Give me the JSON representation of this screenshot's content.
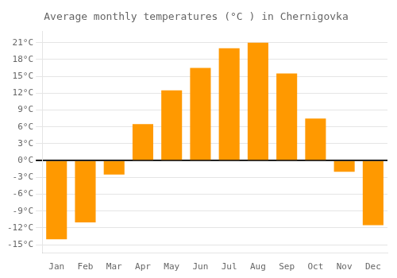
{
  "chart_data": {
    "type": "bar",
    "title": "Average monthly temperatures (°C ) in Chernigovka",
    "categories": [
      "Jan",
      "Feb",
      "Mar",
      "Apr",
      "May",
      "Jun",
      "Jul",
      "Aug",
      "Sep",
      "Oct",
      "Nov",
      "Dec"
    ],
    "values": [
      -14,
      -11,
      -2.5,
      6.5,
      12.5,
      16.5,
      20,
      21,
      15.5,
      7.5,
      -2,
      -11.5
    ],
    "color": "#FF9900",
    "ylim": [
      -16.5,
      23
    ],
    "yticks": [
      {
        "value": -15,
        "label": "-15°C"
      },
      {
        "value": -12,
        "label": "-12°C"
      },
      {
        "value": -9,
        "label": "-9°C"
      },
      {
        "value": -6,
        "label": "-6°C"
      },
      {
        "value": -3,
        "label": "-3°C"
      },
      {
        "value": 0,
        "label": "0°C"
      },
      {
        "value": 3,
        "label": "3°C"
      },
      {
        "value": 6,
        "label": "6°C"
      },
      {
        "value": 9,
        "label": "9°C"
      },
      {
        "value": 12,
        "label": "12°C"
      },
      {
        "value": 15,
        "label": "15°C"
      },
      {
        "value": 18,
        "label": "18°C"
      },
      {
        "value": 21,
        "label": "21°C"
      }
    ],
    "grid": true
  }
}
